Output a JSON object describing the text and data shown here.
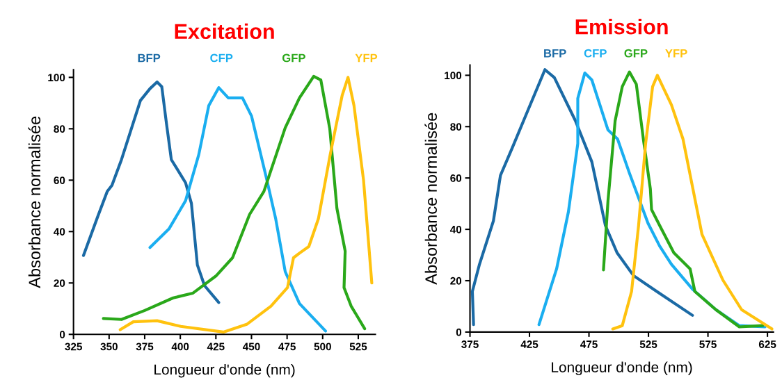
{
  "chart_data": [
    {
      "type": "line",
      "title": "Excitation",
      "xlabel": "Longueur d'onde (nm)",
      "ylabel": "Absorbance normalisée",
      "xlim": [
        325,
        537
      ],
      "xticks": [
        325,
        350,
        375,
        400,
        425,
        450,
        475,
        500,
        525
      ],
      "ylim": [
        0,
        103
      ],
      "yticks": [
        0,
        20,
        40,
        60,
        80,
        100
      ],
      "grid": false,
      "legend": false,
      "series": [
        {
          "name": "BFP",
          "color": "#1b6aa5",
          "x": [
            332,
            342,
            348.7,
            352,
            358.7,
            372,
            378.7,
            383.7,
            387,
            390.3,
            393.7,
            403.7,
            407.8,
            412,
            417,
            427
          ],
          "values": [
            30.7,
            45.8,
            55.6,
            58,
            68,
            91,
            95.6,
            98.2,
            96.4,
            82,
            68,
            59,
            51,
            27,
            19,
            12.4
          ]
        },
        {
          "name": "CFP",
          "color": "#1aaef0",
          "x": [
            378.7,
            392,
            403.7,
            413,
            420,
            427,
            433.7,
            443.7,
            450,
            460,
            467,
            473.7,
            483.7,
            502
          ],
          "values": [
            33.8,
            41,
            52,
            70,
            89,
            96,
            92,
            92,
            85,
            62,
            45,
            24.4,
            12,
            1.3
          ]
        },
        {
          "name": "GFP",
          "color": "#2aa81a",
          "x": [
            346,
            358.7,
            375,
            395,
            408.7,
            425,
            436.7,
            448.7,
            458.7,
            473.7,
            483.7,
            493.7,
            498.7,
            505,
            510,
            515.8,
            515,
            520,
            529.5
          ],
          "values": [
            6.2,
            5.8,
            9.3,
            14.2,
            16,
            22.7,
            29.8,
            46.7,
            55.6,
            80.4,
            92,
            100.4,
            99,
            80,
            49,
            32.4,
            18.2,
            11,
            2.2
          ]
        },
        {
          "name": "YFP",
          "color": "#ffc20e",
          "x": [
            357.8,
            367,
            383.7,
            400.3,
            430.3,
            447,
            463.7,
            475.3,
            479.5,
            483.7,
            490.3,
            497,
            505.3,
            513.7,
            517.8,
            522,
            528.7,
            534.5
          ],
          "values": [
            1.8,
            4.9,
            5.3,
            3.1,
            0.9,
            4,
            11,
            18.2,
            29.8,
            31.6,
            34.2,
            45,
            70,
            93,
            100,
            89,
            60,
            20
          ]
        }
      ]
    },
    {
      "type": "line",
      "title": "Emission",
      "xlabel": "Longueur d'onde (nm)",
      "ylabel": "Absorbance normalisée",
      "xlim": [
        375,
        630
      ],
      "xticks": [
        375,
        425,
        475,
        525,
        575,
        625
      ],
      "ylim": [
        0,
        104
      ],
      "yticks": [
        0,
        20,
        40,
        60,
        80,
        100
      ],
      "grid": false,
      "legend": false,
      "series": [
        {
          "name": "BFP",
          "color": "#1b6aa5",
          "x": [
            378,
            377,
            383,
            394.7,
            400.6,
            410.4,
            424,
            438,
            445.9,
            463.6,
            477.4,
            488.8,
            498.6,
            512.4,
            532,
            562
          ],
          "values": [
            2.9,
            15.8,
            26.4,
            43.3,
            61,
            71.6,
            86.7,
            102.2,
            99.1,
            82.3,
            66.3,
            41.5,
            30.9,
            22,
            15.8,
            6.5
          ]
        },
        {
          "name": "CFP",
          "color": "#1aaef0",
          "x": [
            433,
            447.8,
            457.7,
            465.6,
            465.6,
            471.5,
            477.4,
            491,
            499,
            509,
            524.6,
            534.4,
            544.3,
            562,
            581.7,
            601.4,
            623
          ],
          "values": [
            2.9,
            24.6,
            46.8,
            73.4,
            91,
            100.9,
            98.2,
            78.7,
            75.2,
            61.9,
            42.4,
            33.5,
            26.4,
            16.7,
            8.7,
            2.5,
            2
          ]
        },
        {
          "name": "GFP",
          "color": "#2aa81a",
          "x": [
            487.2,
            491,
            497,
            503,
            509,
            514.8,
            520.7,
            526.6,
            527.6,
            534.4,
            546.3,
            560,
            564,
            581.7,
            601.4,
            621
          ],
          "values": [
            24.2,
            51.2,
            82.3,
            95.6,
            101.3,
            96.5,
            75.2,
            55.7,
            47.7,
            41.5,
            30.9,
            24.6,
            15.8,
            8.7,
            2,
            2.5
          ]
        },
        {
          "name": "YFP",
          "color": "#ffc20e",
          "x": [
            495,
            503,
            510.8,
            516.7,
            522.6,
            528.5,
            532.5,
            544.3,
            554,
            570,
            587.6,
            603.3,
            628.9
          ],
          "values": [
            1.2,
            2.5,
            15.8,
            41.5,
            73.4,
            95.6,
            100,
            88.5,
            75.2,
            38,
            20.2,
            8.7,
            1.2
          ]
        }
      ]
    }
  ]
}
